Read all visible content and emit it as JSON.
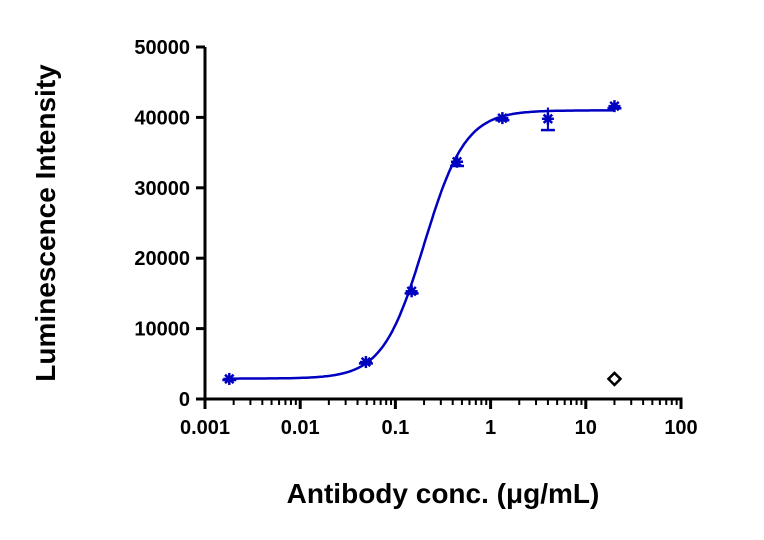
{
  "chart_data": {
    "type": "scatter",
    "title": "",
    "xlabel": "Antibody conc. (μg/mL)",
    "ylabel": "Luminescence Intensity",
    "xscale": "log",
    "xlim": [
      0.001,
      100
    ],
    "ylim": [
      0,
      50000
    ],
    "xticks": [
      "0.001",
      "0.01",
      "0.1",
      "1",
      "10",
      "100"
    ],
    "yticks": [
      "0",
      "10000",
      "20000",
      "30000",
      "40000",
      "50000"
    ],
    "grid": false,
    "series": [
      {
        "color": "#0000c0",
        "marker": "asterisk",
        "x": [
          0.0018,
          0.049,
          0.148,
          0.444,
          1.33,
          4,
          20
        ],
        "y": [
          2850,
          5250,
          15300,
          33700,
          39900,
          39800,
          41600
        ],
        "error": [
          150,
          200,
          300,
          600,
          300,
          1600,
          300
        ],
        "fit": {
          "model": "4PL",
          "bottom": 2900,
          "top": 41000,
          "ec50": 0.2,
          "hill": 2.0
        }
      },
      {
        "color": "#000000",
        "marker": "diamond",
        "x": [
          20
        ],
        "y": [
          2850
        ]
      }
    ]
  }
}
